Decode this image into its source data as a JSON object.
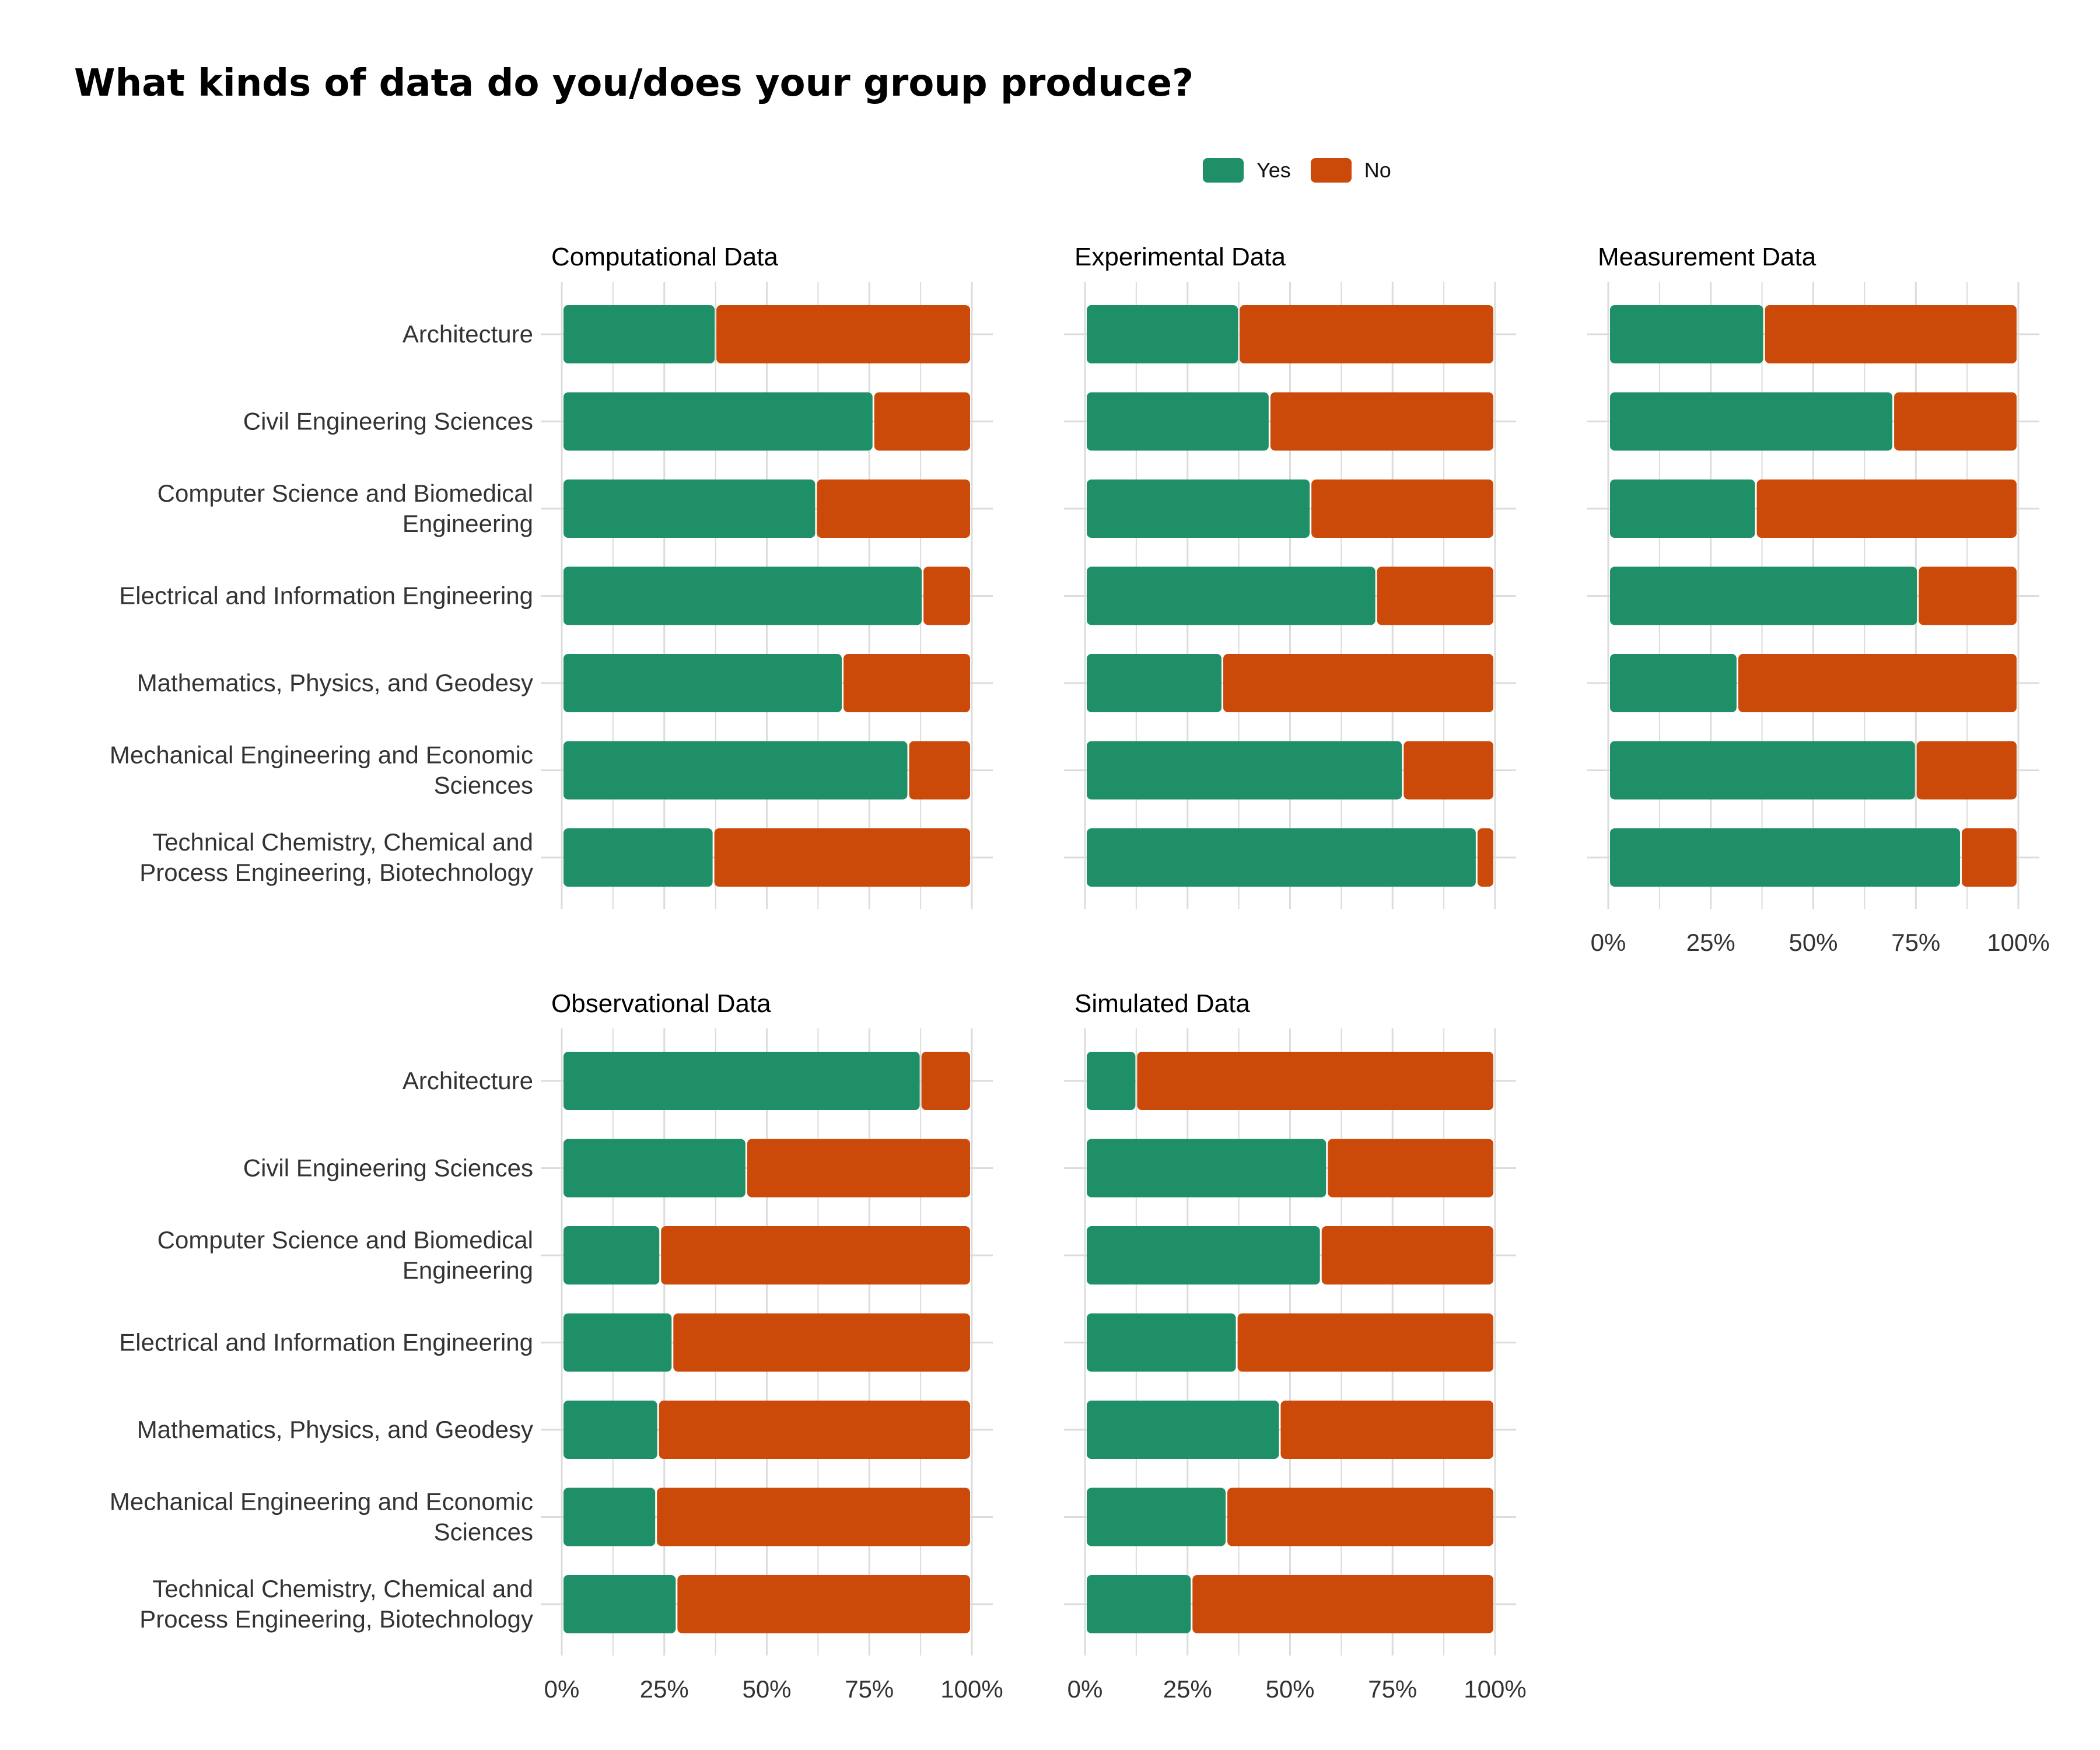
{
  "title": "What kinds of data do you/does your group produce?",
  "colors": {
    "yes": "#1e8f67",
    "no": "#cb4a0a",
    "grid": "#dcdcdc"
  },
  "legend": [
    {
      "label": "Yes",
      "key": "yes"
    },
    {
      "label": "No",
      "key": "no"
    }
  ],
  "chart_data": {
    "type": "bar",
    "orientation": "horizontal",
    "stacked": "percent",
    "facet_layout": "3 columns x 2 rows",
    "categories": [
      [
        "Architecture"
      ],
      [
        "Civil Engineering Sciences"
      ],
      [
        "Computer Science and Biomedical",
        "Engineering"
      ],
      [
        "Electrical and Information Engineering"
      ],
      [
        "Mathematics, Physics, and Geodesy"
      ],
      [
        "Mechanical Engineering and Economic",
        "Sciences"
      ],
      [
        "Technical Chemistry, Chemical and",
        "Process Engineering, Biotechnology"
      ]
    ],
    "series_names": [
      "Yes",
      "No"
    ],
    "x_ticks": [
      "0%",
      "25%",
      "50%",
      "75%",
      "100%"
    ],
    "xlim": [
      0,
      100
    ],
    "grid": true,
    "legend_position": "top",
    "panels": [
      {
        "title": "Computational Data",
        "yes": [
          37.5,
          76,
          62,
          88,
          68.5,
          84.5,
          37
        ]
      },
      {
        "title": "Experimental Data",
        "yes": [
          37.5,
          45,
          55,
          71,
          33.5,
          77.5,
          95.5
        ]
      },
      {
        "title": "Measurement Data",
        "yes": [
          38,
          69.5,
          36,
          75.5,
          31.5,
          75,
          86
        ]
      },
      {
        "title": "Observational Data",
        "yes": [
          87.5,
          45,
          24,
          27,
          23.5,
          23,
          28
        ]
      },
      {
        "title": "Simulated Data",
        "yes": [
          12.5,
          59,
          57.5,
          37,
          47.5,
          34.5,
          26
        ]
      }
    ]
  }
}
